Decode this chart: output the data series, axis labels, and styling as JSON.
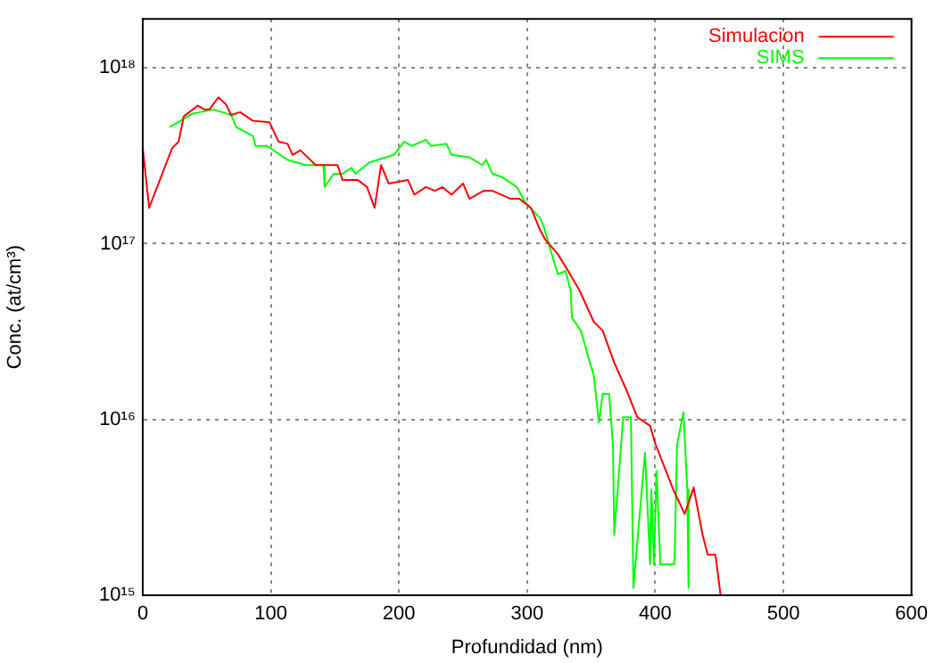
{
  "chart_data": {
    "type": "line",
    "xlabel": "Profundidad (nm)",
    "ylabel": "Conc. (at/cm³)",
    "log": "y",
    "grid": true,
    "legend": "top right",
    "marker": "none",
    "line_style": "solid",
    "xlim": [
      0,
      600
    ],
    "xticks": [
      0,
      100,
      200,
      300,
      400,
      500,
      600
    ],
    "ylim": [
      1000000000000000.0,
      1.9e+18
    ],
    "yticks": [
      {
        "value": 1000000000000000.0,
        "label": "10¹⁵"
      },
      {
        "value": 1e+16,
        "label": "10¹⁶"
      },
      {
        "value": 1e+17,
        "label": "10¹⁷"
      },
      {
        "value": 1e+18,
        "label": "10¹⁸"
      }
    ],
    "series": [
      {
        "name": "Simulacion",
        "color": "#ff0000",
        "x": [
          0,
          5,
          17,
          23,
          28,
          32,
          43,
          48,
          52,
          59,
          65,
          69,
          76,
          86,
          99,
          106,
          113,
          117,
          123,
          135,
          152,
          156,
          168,
          175,
          181,
          186,
          192,
          207,
          212,
          221,
          228,
          234,
          241,
          250,
          255,
          266,
          273,
          287,
          294,
          303,
          310,
          314,
          324,
          331,
          341,
          352,
          359,
          368,
          377,
          386,
          396,
          400,
          414,
          423,
          430,
          437,
          441,
          447,
          451
        ],
        "values": [
          3.5e+17,
          1.6e+17,
          2.7e+17,
          3.5e+17,
          3.8e+17,
          5.3e+17,
          6.1e+17,
          5.8e+17,
          5.8e+17,
          6.8e+17,
          6.2e+17,
          5.4e+17,
          5.6e+17,
          5e+17,
          4.9e+17,
          3.8e+17,
          3.7e+17,
          3.2e+17,
          3.4e+17,
          2.8e+17,
          2.8e+17,
          2.3e+17,
          2.3e+17,
          2.1e+17,
          1.6e+17,
          2.8e+17,
          2.2e+17,
          2.3e+17,
          1.9e+17,
          2.1e+17,
          2e+17,
          2.1e+17,
          1.9e+17,
          2.2e+17,
          1.8e+17,
          2e+17,
          2e+17,
          1.8e+17,
          1.8e+17,
          1.6e+17,
          1.2e+17,
          1.06e+17,
          8.7e+16,
          7.2e+16,
          5.4e+16,
          3.6e+16,
          3.2e+16,
          2.1e+16,
          1.5e+16,
          1.03e+16,
          9200000000000000.0,
          7300000000000000.0,
          4000000000000000.0,
          2900000000000000.0,
          4100000000000000.0,
          2200000000000000.0,
          1700000000000000.0,
          1700000000000000.0,
          1000000000000000.0
        ]
      },
      {
        "name": "SIMS",
        "color": "#00ff00",
        "x": [
          21,
          39,
          55,
          69,
          73,
          86,
          88,
          97,
          113,
          127,
          141,
          142,
          149,
          156,
          163,
          166,
          177,
          196,
          204,
          210,
          221,
          225,
          237,
          241,
          255,
          265,
          268,
          273,
          280,
          292,
          299,
          310,
          313,
          317,
          324,
          330,
          334,
          335,
          342,
          349,
          352,
          356,
          359,
          364,
          367,
          368,
          375,
          381,
          383,
          392,
          396,
          397,
          399,
          401,
          404,
          415,
          417,
          422,
          425,
          426
        ],
        "values": [
          4.6e+17,
          5.5e+17,
          5.8e+17,
          5.4e+17,
          4.6e+17,
          4.1e+17,
          3.6e+17,
          3.6e+17,
          3e+17,
          2.8e+17,
          2.8e+17,
          2.1e+17,
          2.5e+17,
          2.5e+17,
          2.7e+17,
          2.5e+17,
          2.9e+17,
          3.2e+17,
          3.8e+17,
          3.6e+17,
          3.9e+17,
          3.6e+17,
          3.7e+17,
          3.2e+17,
          3.1e+17,
          2.8e+17,
          3e+17,
          2.5e+17,
          2.4e+17,
          2.1e+17,
          1.7e+17,
          1.4e+17,
          1.25e+17,
          9.9e+16,
          6.7e+16,
          7e+16,
          5.4e+16,
          3.8e+16,
          3.2e+16,
          2.1e+16,
          1.8e+16,
          9600000000000000.0,
          1.4e+16,
          1.4e+16,
          7200000000000000.0,
          2200000000000000.0,
          1.03e+16,
          1.03e+16,
          1100000000000000.0,
          6500000000000000.0,
          1500000000000000.0,
          4000000000000000.0,
          1500000000000000.0,
          5100000000000000.0,
          1500000000000000.0,
          1500000000000000.0,
          7200000000000000.0,
          1.1e+16,
          4000000000000000.0,
          1100000000000000.0
        ]
      }
    ]
  }
}
